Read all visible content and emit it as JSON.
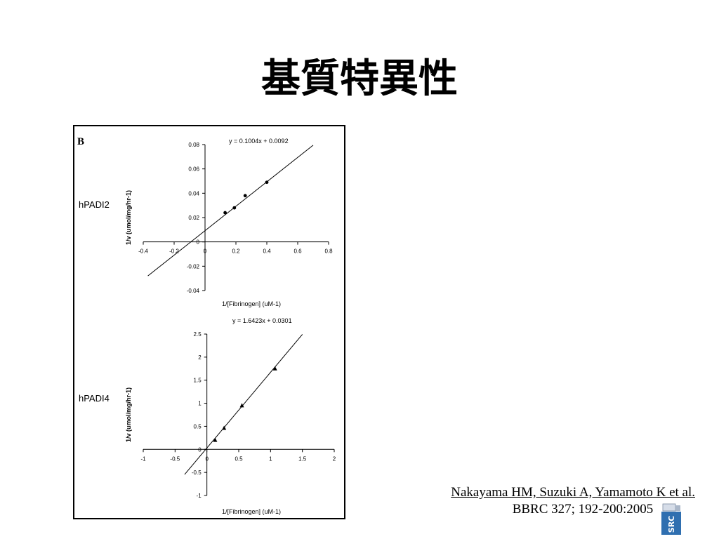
{
  "slide": {
    "title": "基質特異性"
  },
  "figure": {
    "panel_letter": "B"
  },
  "citation": {
    "line1": "Nakayama HM, Suzuki A, Yamamoto K et al.",
    "line2": "BBRC 327; 192-200:2005"
  },
  "logo": {
    "text": "SRC",
    "accent": "#2f6fb0"
  },
  "chart_data": [
    {
      "type": "scatter",
      "row_label": "hPADI2",
      "equation": "y = 0.1004x + 0.0092",
      "xlabel": "1/[Fibrinogen] (uM-1)",
      "ylabel": "1/v  (umol/mg/hr-1)",
      "xlim": [
        -0.4,
        0.8
      ],
      "ylim": [
        -0.04,
        0.08
      ],
      "x_ticks": [
        "-0.4",
        "-0.2",
        "0",
        "0.2",
        "0.4",
        "0.6",
        "0.8"
      ],
      "y_ticks": [
        "0.08",
        "0.06",
        "0.04",
        "0.02",
        "0",
        "-0.02",
        "-0.04"
      ],
      "marker": "circle",
      "points": [
        {
          "x": 0.13,
          "y": 0.024
        },
        {
          "x": 0.19,
          "y": 0.028
        },
        {
          "x": 0.26,
          "y": 0.038
        },
        {
          "x": 0.4,
          "y": 0.049
        }
      ],
      "fit": {
        "slope": 0.1004,
        "intercept": 0.0092,
        "x_range": [
          -0.37,
          0.7
        ]
      }
    },
    {
      "type": "scatter",
      "row_label": "hPADI4",
      "equation": "y = 1.6423x + 0.0301",
      "xlabel": "1/[Fibrinogen] (uM-1)",
      "ylabel": "1/v  (umol/mg/hr-1)",
      "xlim": [
        -1,
        2
      ],
      "ylim": [
        -1,
        2.5
      ],
      "x_ticks": [
        "-1",
        "-0.5",
        "0",
        "0.5",
        "1",
        "1.5",
        "2"
      ],
      "y_ticks": [
        "2.5",
        "2",
        "1.5",
        "1",
        "0.5",
        "0",
        "-0.5",
        "-1"
      ],
      "marker": "triangle",
      "points": [
        {
          "x": 0.13,
          "y": 0.2
        },
        {
          "x": 0.27,
          "y": 0.46
        },
        {
          "x": 0.55,
          "y": 0.95
        },
        {
          "x": 1.07,
          "y": 1.75
        }
      ],
      "fit": {
        "slope": 1.6423,
        "intercept": 0.0301,
        "x_range": [
          -0.35,
          1.5
        ]
      }
    }
  ]
}
